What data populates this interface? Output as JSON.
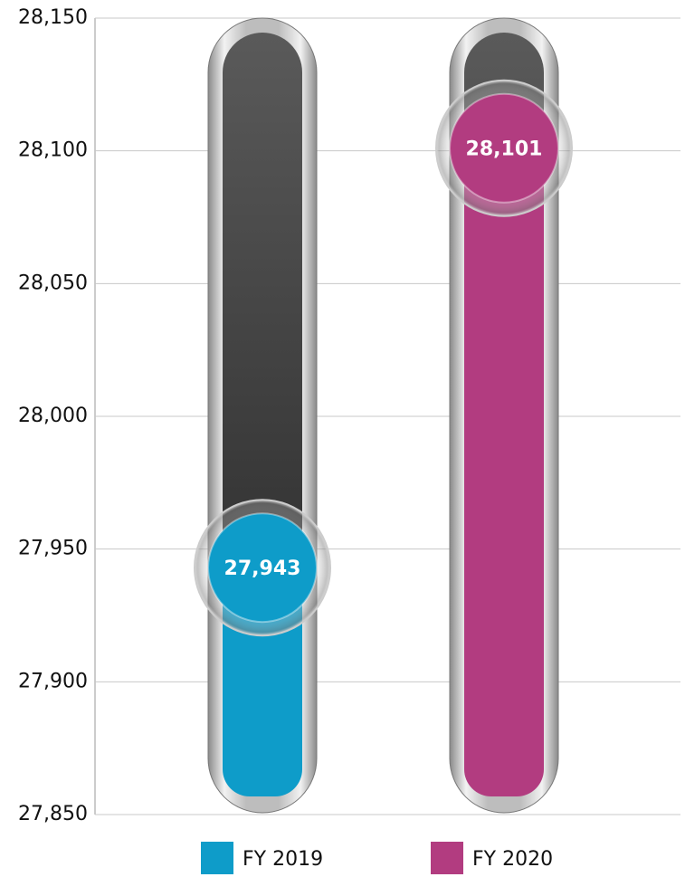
{
  "chart_data": {
    "type": "bar",
    "categories": [
      null
    ],
    "series": [
      {
        "name": "FY 2019",
        "color": "#0e9cc9",
        "values": [
          27943
        ],
        "value_labels": [
          "27,943"
        ]
      },
      {
        "name": "FY 2020",
        "color": "#b23c80",
        "values": [
          28101
        ],
        "value_labels": [
          "28,101"
        ]
      }
    ],
    "ylim": [
      27850,
      28150
    ],
    "yticks": [
      {
        "value": 27850,
        "label": "27,850"
      },
      {
        "value": 27900,
        "label": "27,900"
      },
      {
        "value": 27950,
        "label": "27,950"
      },
      {
        "value": 28000,
        "label": "28,000"
      },
      {
        "value": 28050,
        "label": "28,050"
      },
      {
        "value": 28100,
        "label": "28,100"
      },
      {
        "value": 28150,
        "label": "28,150"
      }
    ],
    "grid": true,
    "legend": "bottom"
  }
}
